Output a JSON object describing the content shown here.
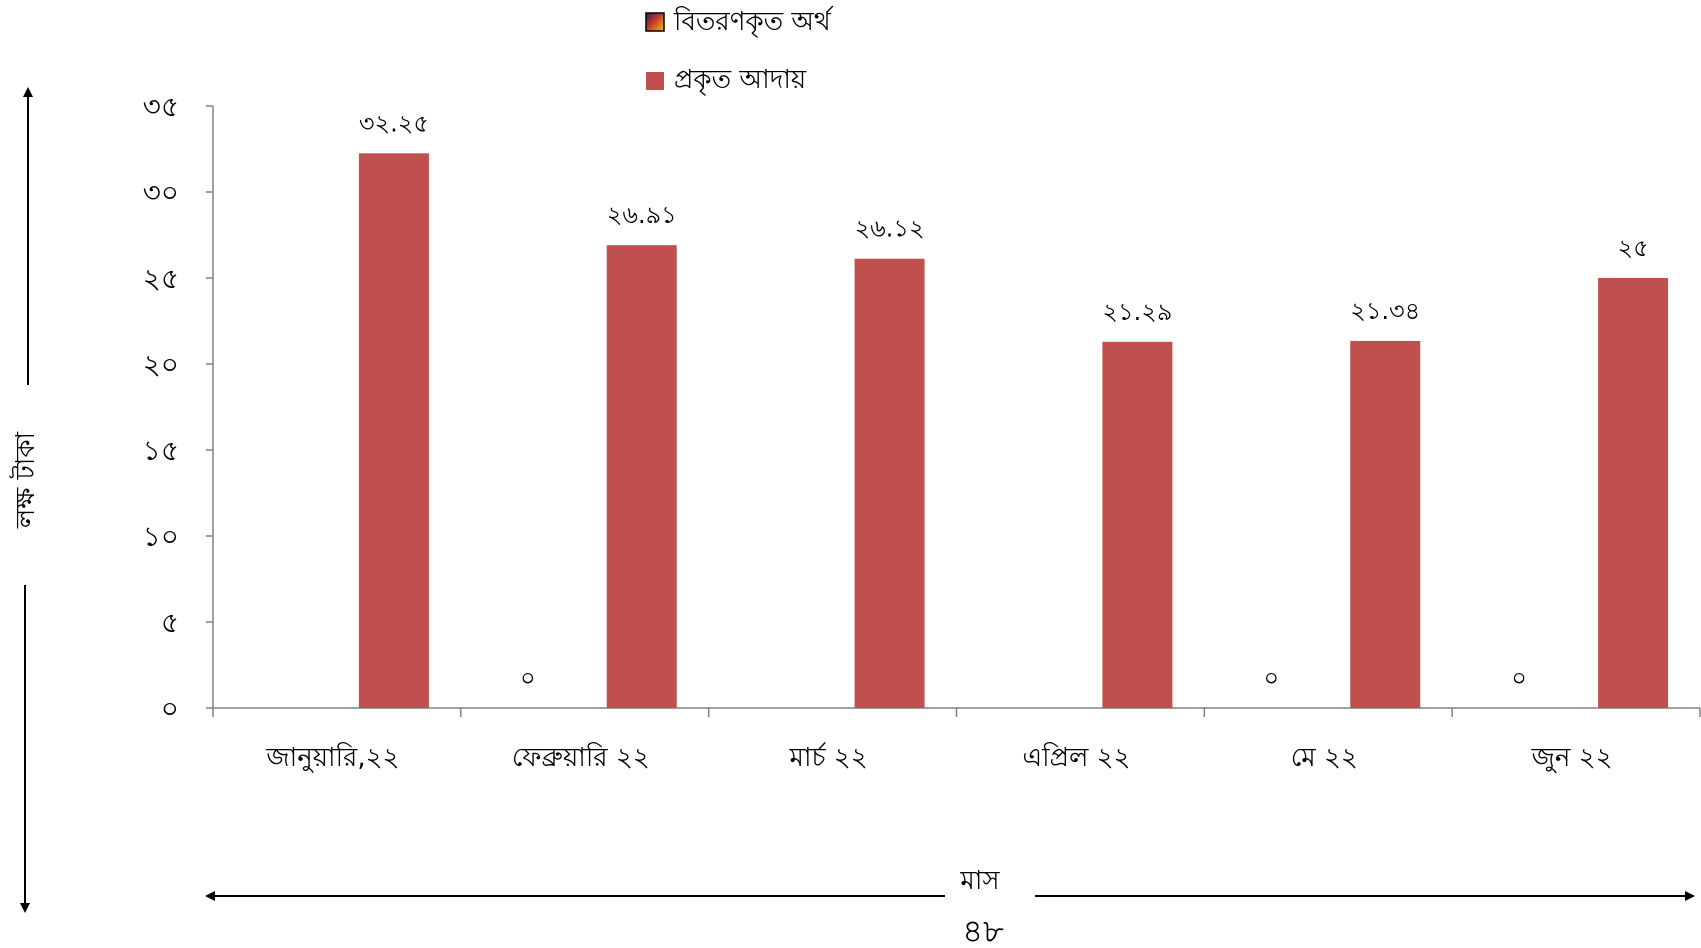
{
  "chart_data": {
    "type": "bar",
    "categories": [
      "জানুয়ারি,২২",
      "ফেব্রুয়ারি ২২",
      "মার্চ ২২",
      "এপ্রিল ২২",
      "মে ২২",
      "জুন ২২"
    ],
    "series": [
      {
        "name": "বিতরণকৃত অর্থ",
        "values": [
          null,
          0,
          null,
          null,
          0,
          0
        ],
        "labels": [
          "",
          "০",
          "",
          "",
          "০",
          "০"
        ],
        "color": "#6b2a6b"
      },
      {
        "name": "প্রকৃত আদায়",
        "values": [
          32.25,
          26.91,
          26.12,
          21.29,
          21.34,
          25
        ],
        "labels": [
          "৩২.২৫",
          "২৬.৯১",
          "২৬.১২",
          "২১.২৯",
          "২১.৩৪",
          "২৫"
        ],
        "color": "#c0504d"
      }
    ],
    "ylim": [
      0,
      35
    ],
    "yticks": [
      0,
      5,
      10,
      15,
      20,
      25,
      30,
      35
    ],
    "ytick_labels": [
      "০",
      "৫",
      "১০",
      "১৫",
      "২০",
      "২৫",
      "৩০",
      "৩৫"
    ],
    "ylabel": "লক্ষ টাকা",
    "xlabel": "মাস",
    "legend_position": "top-center",
    "grid": false
  },
  "page_number": "৪৮"
}
